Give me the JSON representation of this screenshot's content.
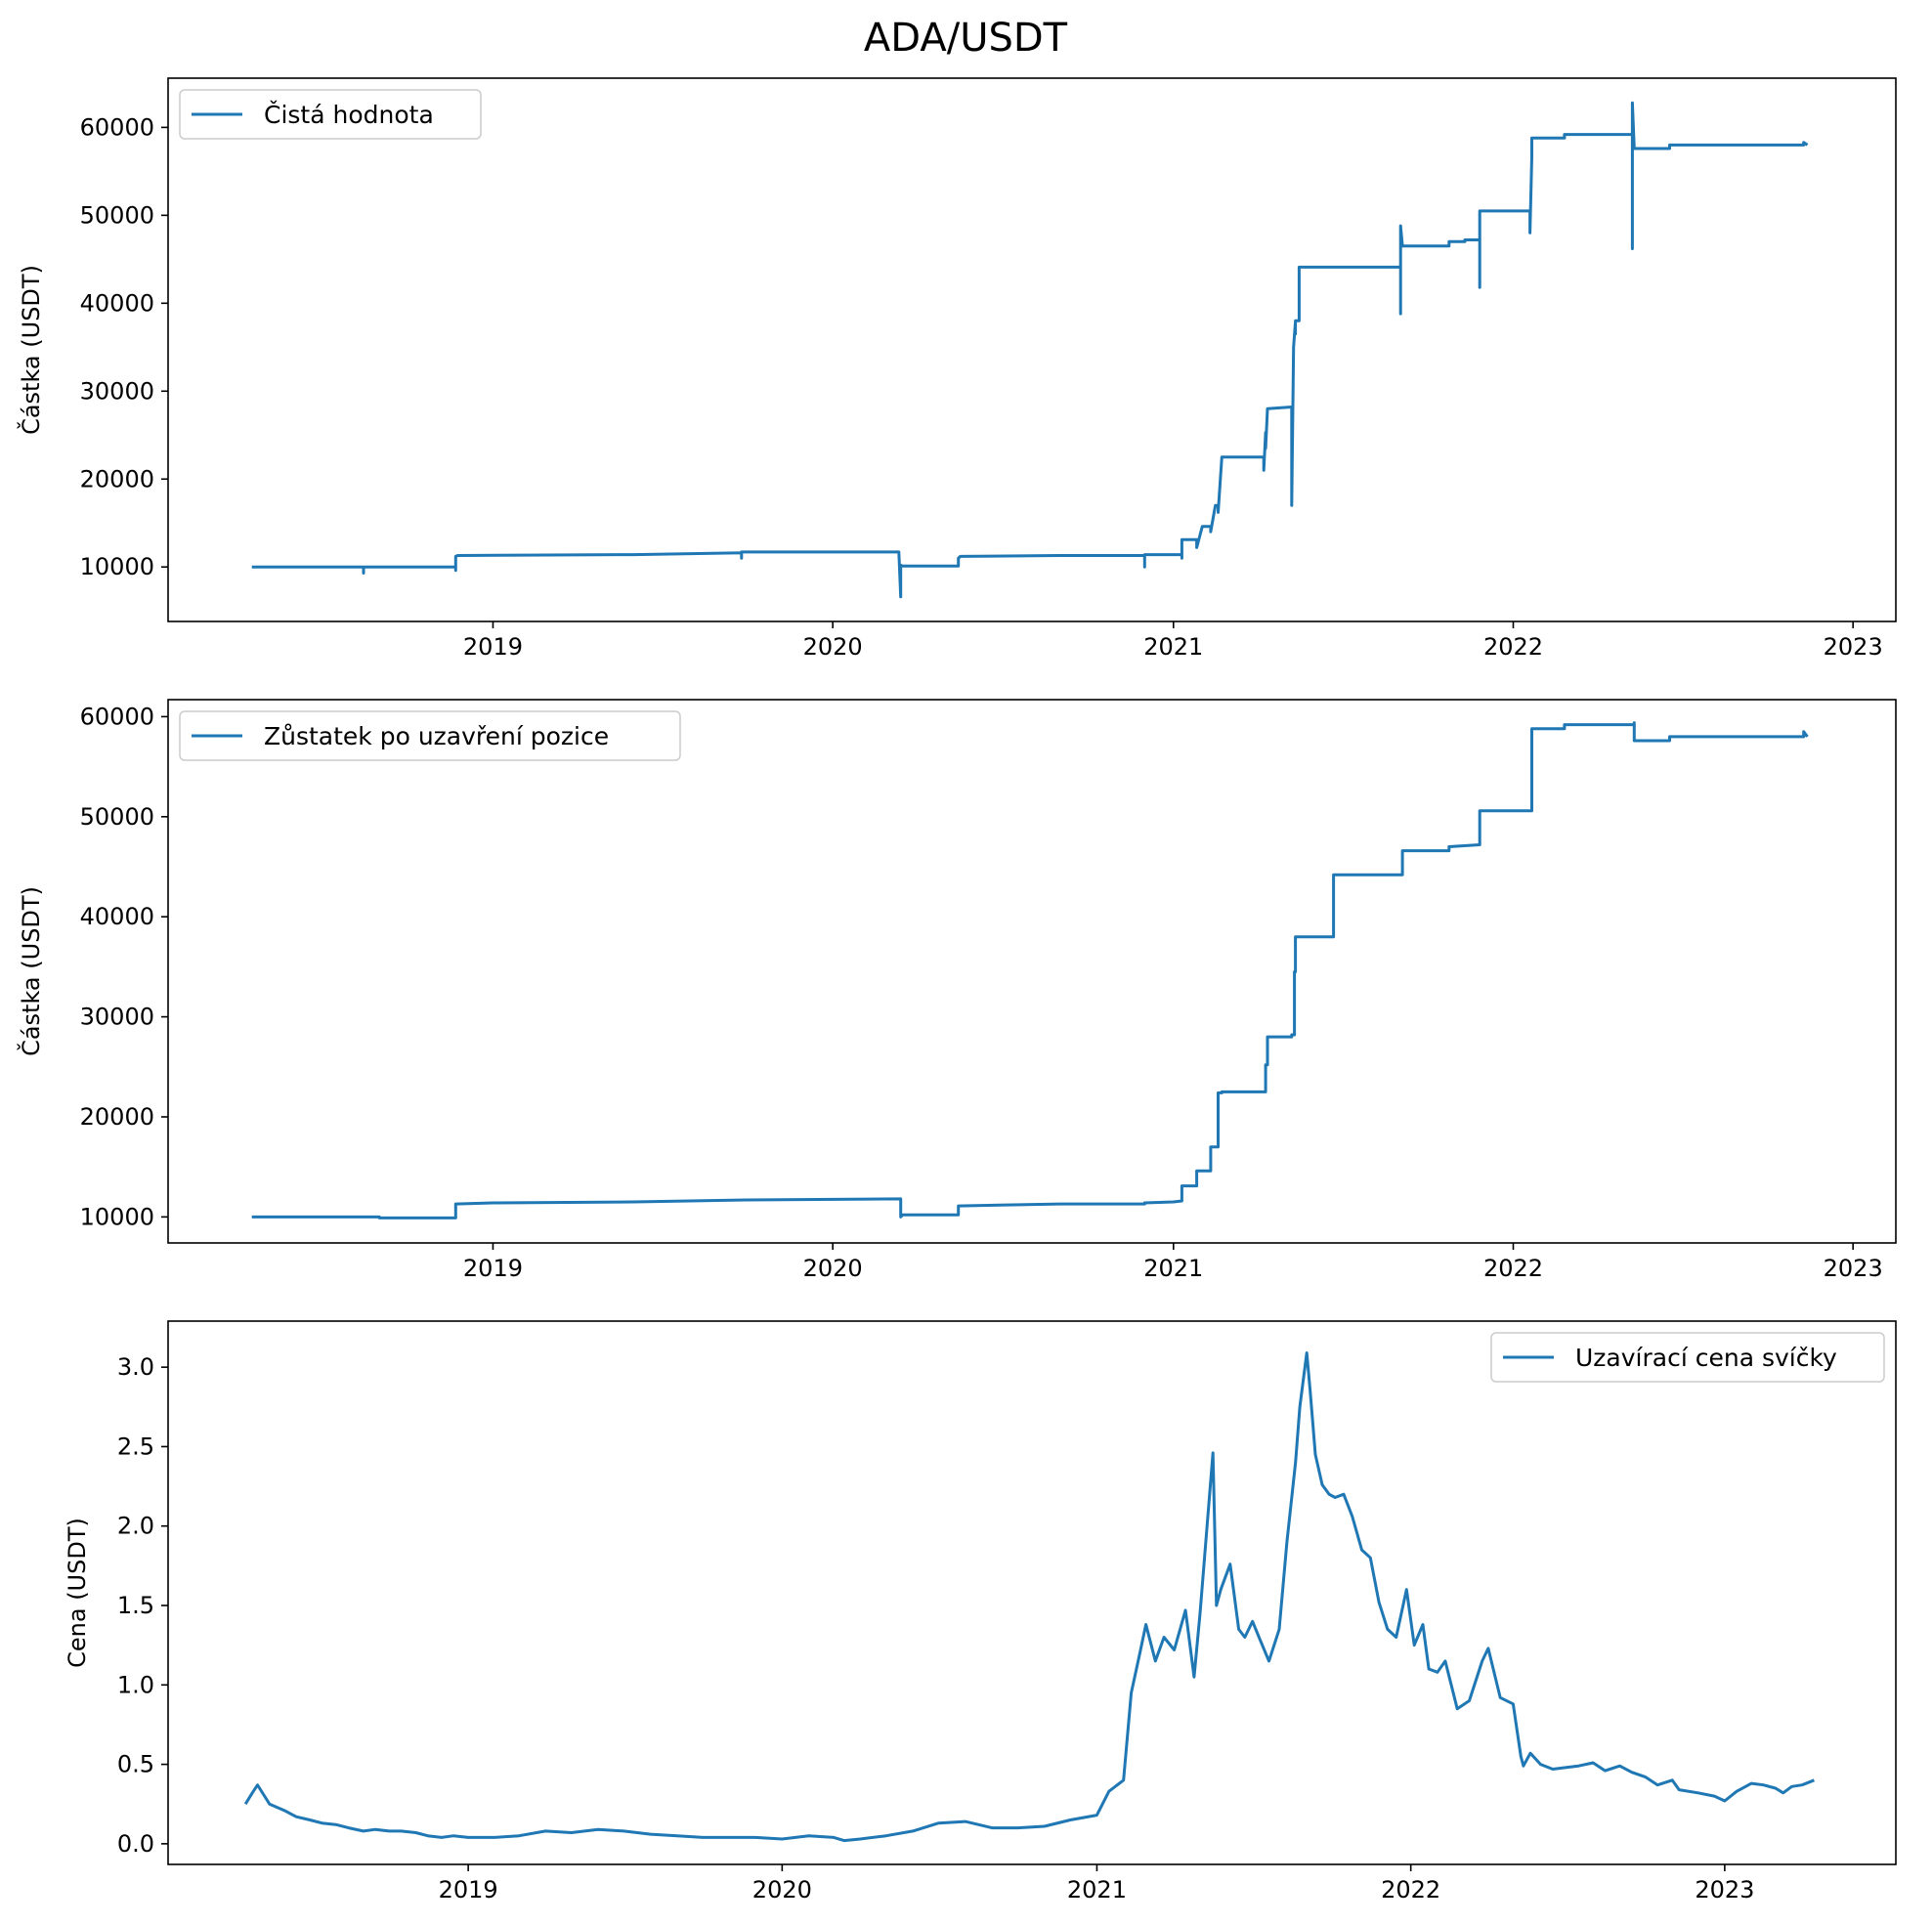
{
  "figure": {
    "title": "ADA/USDT",
    "line_color": "#1f77b4"
  },
  "chart_data": [
    {
      "type": "line",
      "title": "",
      "xlabel": "",
      "ylabel": "Částka (USDT)",
      "legend": "top-left",
      "grid": false,
      "x_ticks": [
        "2019",
        "2020",
        "2021",
        "2022",
        "2023"
      ],
      "y_ticks": [
        "10000",
        "20000",
        "30000",
        "40000",
        "50000",
        "60000"
      ],
      "xlim": [
        "2018-01-17",
        "2023-02-16"
      ],
      "ylim": [
        3800,
        65600
      ],
      "series": [
        {
          "name": "Čistá hodnota",
          "x": [
            "2018-04-17",
            "2018-08-15",
            "2018-08-15",
            "2018-08-15",
            "2018-11-22",
            "2018-11-22",
            "2018-11-22",
            "2018-11-24",
            "2019-06-01",
            "2019-09-25",
            "2019-09-25",
            "2019-09-25",
            "2020-03-12",
            "2020-03-14",
            "2020-03-14",
            "2020-03-16",
            "2020-03-18",
            "2020-05-15",
            "2020-05-15",
            "2020-05-17",
            "2020-09-01",
            "2020-12-01",
            "2020-12-01",
            "2020-12-01",
            "2021-01-01",
            "2021-01-10",
            "2021-01-10",
            "2021-01-10",
            "2021-01-26",
            "2021-01-26",
            "2021-02-01",
            "2021-02-10",
            "2021-02-10",
            "2021-02-15",
            "2021-02-18",
            "2021-02-18",
            "2021-02-22",
            "2021-02-22",
            "2021-04-08",
            "2021-04-08",
            "2021-04-10",
            "2021-04-10",
            "2021-04-12",
            "2021-04-12",
            "2021-05-08",
            "2021-05-08",
            "2021-05-10",
            "2021-05-12",
            "2021-05-12",
            "2021-05-12",
            "2021-05-14",
            "2021-05-16",
            "2021-05-16",
            "2021-06-22",
            "2021-06-22",
            "2021-06-24",
            "2021-06-24",
            "2021-09-02",
            "2021-09-02",
            "2021-09-02",
            "2021-09-04",
            "2021-09-04",
            "2021-10-24",
            "2021-10-24",
            "2021-11-10",
            "2021-11-10",
            "2021-11-26",
            "2021-11-26",
            "2021-11-26",
            "2021-11-28",
            "2022-01-19",
            "2022-01-19",
            "2022-01-21",
            "2022-01-21",
            "2022-01-21",
            "2022-02-25",
            "2022-02-25",
            "2022-05-09",
            "2022-05-09",
            "2022-05-09",
            "2022-05-11",
            "2022-05-11",
            "2022-06-18",
            "2022-06-18",
            "2022-11-09",
            "2022-11-09",
            "2022-11-13"
          ],
          "values": [
            10000,
            10000,
            9300,
            10000,
            10000,
            9600,
            11200,
            11300,
            11400,
            11600,
            11000,
            11700,
            11700,
            6600,
            10200,
            10100,
            10100,
            10100,
            11000,
            11200,
            11300,
            11300,
            10000,
            11400,
            11400,
            11400,
            11000,
            13100,
            13100,
            12200,
            14600,
            14600,
            14000,
            17000,
            17000,
            16200,
            22500,
            22500,
            22500,
            21000,
            25300,
            23500,
            28000,
            28000,
            28200,
            17000,
            35000,
            37900,
            36500,
            38000,
            38000,
            38000,
            44100,
            44100,
            44100,
            44100,
            44100,
            44100,
            38800,
            48800,
            46500,
            46500,
            46500,
            47000,
            47000,
            47200,
            47200,
            41800,
            50500,
            50500,
            50500,
            48000,
            56700,
            58800,
            58800,
            58800,
            59200,
            59200,
            46200,
            62800,
            57600,
            57600,
            57600,
            58000,
            58000,
            58300,
            58000
          ]
        }
      ]
    },
    {
      "type": "line",
      "title": "",
      "xlabel": "",
      "ylabel": "Částka (USDT)",
      "legend": "top-left",
      "grid": false,
      "x_ticks": [
        "2019",
        "2020",
        "2021",
        "2022",
        "2023"
      ],
      "y_ticks": [
        "10000",
        "20000",
        "30000",
        "40000",
        "50000",
        "60000"
      ],
      "xlim": [
        "2018-01-17",
        "2023-02-16"
      ],
      "ylim": [
        7400,
        61700
      ],
      "series": [
        {
          "name": "Zůstatek po uzavření pozice",
          "x": [
            "2018-04-17",
            "2018-09-01",
            "2018-09-01",
            "2018-11-22",
            "2018-11-22",
            "2019-01-01",
            "2019-06-01",
            "2019-10-01",
            "2020-03-14",
            "2020-03-14",
            "2020-03-16",
            "2020-05-15",
            "2020-05-15",
            "2020-09-01",
            "2020-12-01",
            "2020-12-01",
            "2021-01-01",
            "2021-01-10",
            "2021-01-10",
            "2021-01-26",
            "2021-01-26",
            "2021-02-10",
            "2021-02-10",
            "2021-02-18",
            "2021-02-18",
            "2021-02-22",
            "2021-02-22",
            "2021-04-10",
            "2021-04-10",
            "2021-04-12",
            "2021-04-12",
            "2021-05-08",
            "2021-05-08",
            "2021-05-11",
            "2021-05-11",
            "2021-05-12",
            "2021-05-12",
            "2021-06-22",
            "2021-06-22",
            "2021-09-04",
            "2021-09-04",
            "2021-10-24",
            "2021-10-24",
            "2021-11-26",
            "2021-11-26",
            "2022-01-21",
            "2022-01-21",
            "2022-02-25",
            "2022-02-25",
            "2022-05-11",
            "2022-05-11",
            "2022-05-11",
            "2022-06-18",
            "2022-06-18",
            "2022-11-09",
            "2022-11-09",
            "2022-11-13"
          ],
          "values": [
            10000,
            10000,
            9900,
            9900,
            11300,
            11400,
            11500,
            11700,
            11800,
            10000,
            10200,
            10200,
            11100,
            11300,
            11300,
            11400,
            11500,
            11600,
            13100,
            13100,
            14600,
            14600,
            17000,
            17000,
            22400,
            22400,
            22500,
            22500,
            25200,
            25200,
            28000,
            28000,
            28200,
            28200,
            34500,
            34500,
            38000,
            38000,
            44200,
            44200,
            46600,
            46600,
            47000,
            47200,
            50600,
            50600,
            58800,
            58800,
            59200,
            59200,
            59400,
            57600,
            57600,
            58000,
            58000,
            58500,
            58000
          ]
        }
      ]
    },
    {
      "type": "line",
      "title": "",
      "xlabel": "",
      "ylabel": "Cena (USDT)",
      "legend": "top-right",
      "grid": false,
      "x_ticks": [
        "2019",
        "2020",
        "2021",
        "2022",
        "2023"
      ],
      "y_ticks": [
        "0.0",
        "0.5",
        "1.0",
        "1.5",
        "2.0",
        "2.5",
        "3.0"
      ],
      "xlim": [
        "2018-01-17",
        "2023-07-19"
      ],
      "ylim": [
        -0.13,
        3.29
      ],
      "series": [
        {
          "name": "Uzavírací cena svíčky",
          "x": [
            "2018-04-17",
            "2018-04-25",
            "2018-05-01",
            "2018-05-08",
            "2018-05-15",
            "2018-06-01",
            "2018-06-15",
            "2018-07-01",
            "2018-07-15",
            "2018-08-01",
            "2018-08-15",
            "2018-09-01",
            "2018-09-15",
            "2018-10-01",
            "2018-10-15",
            "2018-11-01",
            "2018-11-15",
            "2018-12-01",
            "2018-12-15",
            "2019-01-01",
            "2019-02-01",
            "2019-03-01",
            "2019-04-01",
            "2019-05-01",
            "2019-06-01",
            "2019-07-01",
            "2019-08-01",
            "2019-09-01",
            "2019-10-01",
            "2019-11-01",
            "2019-12-01",
            "2020-01-01",
            "2020-02-01",
            "2020-03-01",
            "2020-03-13",
            "2020-04-01",
            "2020-05-01",
            "2020-06-01",
            "2020-07-01",
            "2020-08-01",
            "2020-09-01",
            "2020-10-01",
            "2020-11-01",
            "2020-12-01",
            "2021-01-01",
            "2021-01-15",
            "2021-02-01",
            "2021-02-10",
            "2021-02-20",
            "2021-02-27",
            "2021-03-10",
            "2021-03-20",
            "2021-04-01",
            "2021-04-14",
            "2021-04-24",
            "2021-05-01",
            "2021-05-16",
            "2021-05-20",
            "2021-05-25",
            "2021-06-05",
            "2021-06-15",
            "2021-06-22",
            "2021-07-01",
            "2021-07-10",
            "2021-07-20",
            "2021-08-01",
            "2021-08-10",
            "2021-08-20",
            "2021-08-25",
            "2021-09-02",
            "2021-09-06",
            "2021-09-12",
            "2021-09-20",
            "2021-09-28",
            "2021-10-05",
            "2021-10-15",
            "2021-10-25",
            "2021-11-05",
            "2021-11-15",
            "2021-11-25",
            "2021-12-05",
            "2021-12-15",
            "2021-12-27",
            "2022-01-05",
            "2022-01-15",
            "2022-01-22",
            "2022-02-01",
            "2022-02-10",
            "2022-02-24",
            "2022-03-10",
            "2022-03-25",
            "2022-04-01",
            "2022-04-15",
            "2022-04-30",
            "2022-05-09",
            "2022-05-12",
            "2022-05-20",
            "2022-06-01",
            "2022-06-15",
            "2022-07-01",
            "2022-07-15",
            "2022-08-01",
            "2022-08-15",
            "2022-09-01",
            "2022-09-15",
            "2022-10-01",
            "2022-10-15",
            "2022-11-01",
            "2022-11-09",
            "2022-12-01",
            "2022-12-20",
            "2023-01-01",
            "2023-01-15",
            "2023-02-01",
            "2023-02-15",
            "2023-03-01",
            "2023-03-10",
            "2023-03-20",
            "2023-04-01",
            "2023-04-15"
          ],
          "values": [
            0.25,
            0.32,
            0.37,
            0.31,
            0.25,
            0.21,
            0.17,
            0.15,
            0.13,
            0.12,
            0.1,
            0.08,
            0.09,
            0.08,
            0.08,
            0.07,
            0.05,
            0.04,
            0.05,
            0.04,
            0.04,
            0.05,
            0.08,
            0.07,
            0.09,
            0.08,
            0.06,
            0.05,
            0.04,
            0.04,
            0.04,
            0.03,
            0.05,
            0.04,
            0.02,
            0.03,
            0.05,
            0.08,
            0.13,
            0.14,
            0.1,
            0.1,
            0.11,
            0.15,
            0.18,
            0.33,
            0.4,
            0.95,
            1.2,
            1.38,
            1.15,
            1.3,
            1.22,
            1.47,
            1.05,
            1.45,
            2.46,
            1.5,
            1.6,
            1.76,
            1.35,
            1.3,
            1.4,
            1.28,
            1.15,
            1.35,
            1.9,
            2.4,
            2.75,
            3.09,
            2.85,
            2.45,
            2.26,
            2.2,
            2.18,
            2.2,
            2.06,
            1.85,
            1.8,
            1.52,
            1.35,
            1.3,
            1.6,
            1.25,
            1.38,
            1.1,
            1.08,
            1.15,
            0.85,
            0.9,
            1.15,
            1.23,
            0.92,
            0.88,
            0.55,
            0.49,
            0.57,
            0.5,
            0.47,
            0.48,
            0.49,
            0.51,
            0.46,
            0.49,
            0.45,
            0.42,
            0.37,
            0.4,
            0.34,
            0.32,
            0.3,
            0.27,
            0.33,
            0.38,
            0.37,
            0.35,
            0.32,
            0.36,
            0.37,
            0.4
          ]
        }
      ]
    }
  ]
}
